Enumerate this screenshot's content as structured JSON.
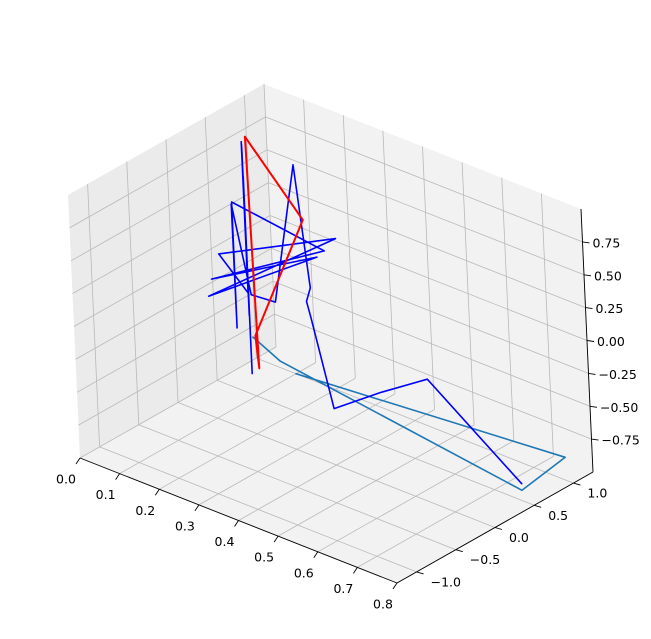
{
  "chart_data": {
    "type": "line",
    "title": "",
    "xlabel": "",
    "ylabel": "",
    "zlabel": "",
    "grid": true,
    "xlim": [
      0.0,
      0.8
    ],
    "ylim": [
      -1.25,
      1.25
    ],
    "zlim": [
      -1.0,
      1.0
    ],
    "x_ticks": [
      "0.0",
      "0.1",
      "0.2",
      "0.3",
      "0.4",
      "0.5",
      "0.6",
      "0.7",
      "0.8"
    ],
    "y_ticks": [
      "−1.0",
      "−0.5",
      "0.0",
      "0.5",
      "1.0"
    ],
    "z_ticks": [
      "−0.75",
      "−0.50",
      "−0.25",
      "0.00",
      "0.25",
      "0.50",
      "0.75"
    ],
    "series": [
      {
        "color": "#1f77b4",
        "points": [
          [
            0.0,
            0.97,
            -0.83
          ],
          [
            0.06,
            1.0,
            -0.95
          ],
          [
            0.76,
            0.55,
            -0.95
          ],
          [
            0.72,
            1.3,
            -1.0
          ],
          [
            0.1,
            1.0,
            -1.0
          ]
        ]
      },
      {
        "color": "#0000ff",
        "points": [
          [
            0.07,
            0.6,
            0.6
          ],
          [
            0.07,
            0.6,
            -0.9
          ],
          [
            0.08,
            0.55,
            0.85
          ],
          [
            0.08,
            0.55,
            -0.3
          ],
          [
            0.09,
            0.5,
            0.9
          ],
          [
            0.09,
            0.5,
            -0.4
          ],
          [
            0.1,
            0.45,
            0.95
          ],
          [
            0.1,
            0.45,
            -0.2
          ],
          [
            0.06,
            0.3,
            0.1
          ],
          [
            0.3,
            0.6,
            0.4
          ],
          [
            0.05,
            0.2,
            -0.2
          ],
          [
            0.25,
            0.6,
            0.2
          ],
          [
            0.08,
            0.1,
            0.0
          ],
          [
            0.28,
            0.55,
            0.3
          ],
          [
            0.12,
            0.2,
            0.6
          ],
          [
            0.14,
            0.1,
            -0.3
          ],
          [
            0.16,
            0.0,
            0.7
          ],
          [
            0.18,
            0.1,
            0.0
          ],
          [
            0.2,
            0.3,
            -0.1
          ],
          [
            0.22,
            0.5,
            0.9
          ],
          [
            0.25,
            0.5,
            0.0
          ],
          [
            0.28,
            0.3,
            0.0
          ],
          [
            0.31,
            0.2,
            -0.05
          ],
          [
            0.39,
            0.05,
            -0.6
          ],
          [
            0.47,
            0.25,
            -0.45
          ],
          [
            0.54,
            0.5,
            -0.35
          ],
          [
            0.76,
            0.55,
            -0.9
          ]
        ]
      },
      {
        "color": "#ff0000",
        "points": [
          [
            0.0,
            1.0,
            -0.83
          ],
          [
            0.28,
            0.3,
            0.62
          ],
          [
            0.11,
            0.45,
            1.0
          ],
          [
            0.12,
            0.45,
            -0.75
          ],
          [
            0.0,
            1.0,
            -0.83
          ]
        ]
      }
    ]
  }
}
